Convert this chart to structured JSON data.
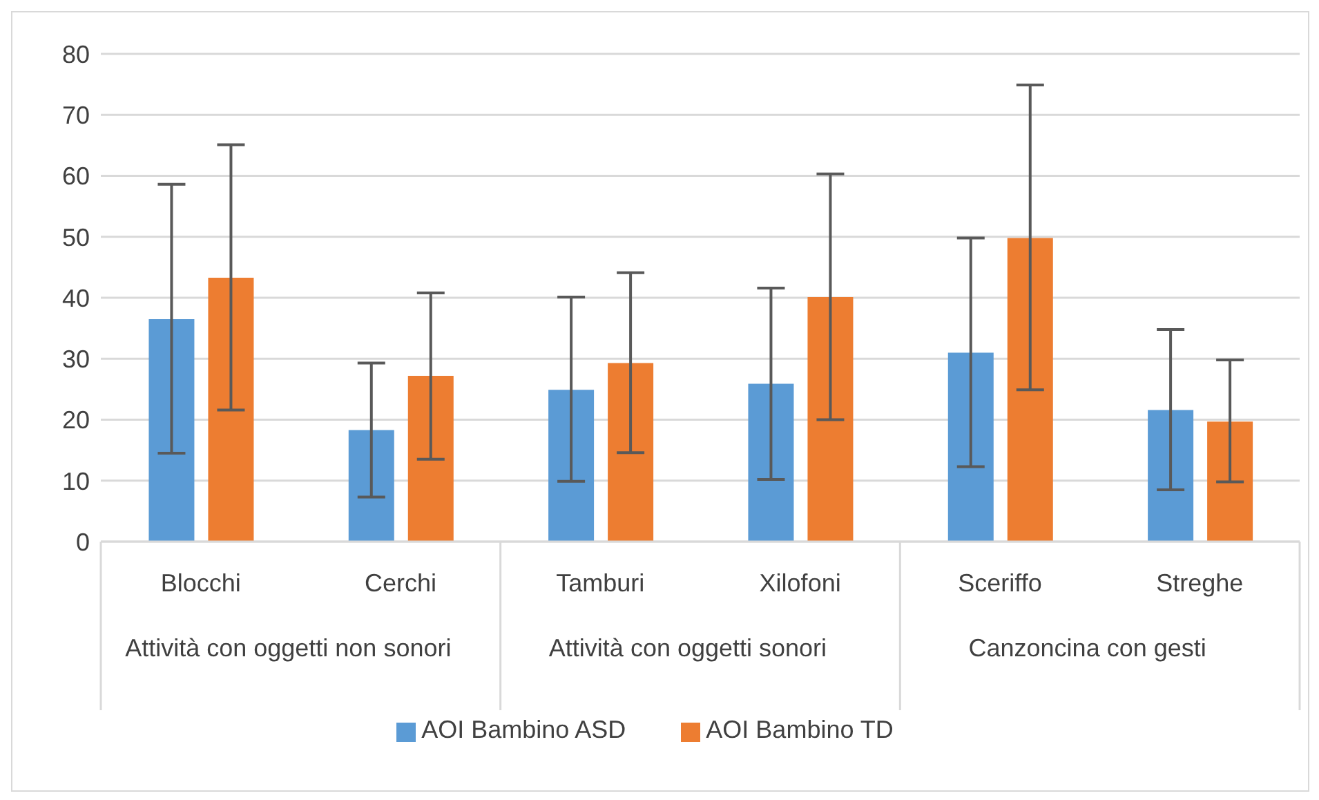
{
  "chart_data": {
    "type": "bar",
    "categories": [
      "Blocchi",
      "Cerchi",
      "Tamburi",
      "Xilofoni",
      "Sceriffo",
      "Streghe"
    ],
    "annotations": [
      "Attività con oggetti non sonori",
      "Attività con oggetti sonori",
      "Canzoncina con gesti"
    ],
    "series": [
      {
        "name": "AOI Bambino ASD",
        "color": "#5b9bd5",
        "values": [
          36.5,
          18.3,
          24.9,
          25.9,
          31.0,
          21.6
        ],
        "errors": [
          [
            14.5,
            58.6
          ],
          [
            7.3,
            29.3
          ],
          [
            9.9,
            40.1
          ],
          [
            10.2,
            41.6
          ],
          [
            12.3,
            49.8
          ],
          [
            8.5,
            34.8
          ]
        ]
      },
      {
        "name": "AOI Bambino TD",
        "color": "#ed7d31",
        "values": [
          43.3,
          27.2,
          29.3,
          40.1,
          49.8,
          19.7
        ],
        "errors": [
          [
            21.6,
            65.1
          ],
          [
            13.5,
            40.8
          ],
          [
            14.6,
            44.1
          ],
          [
            20.0,
            60.3
          ],
          [
            24.9,
            74.9
          ],
          [
            9.8,
            29.8
          ]
        ]
      }
    ],
    "ylim": [
      0,
      80
    ],
    "yticks": [
      0,
      10,
      20,
      30,
      40,
      50,
      60,
      70,
      80
    ],
    "grid": "y",
    "legend": "bottom"
  }
}
